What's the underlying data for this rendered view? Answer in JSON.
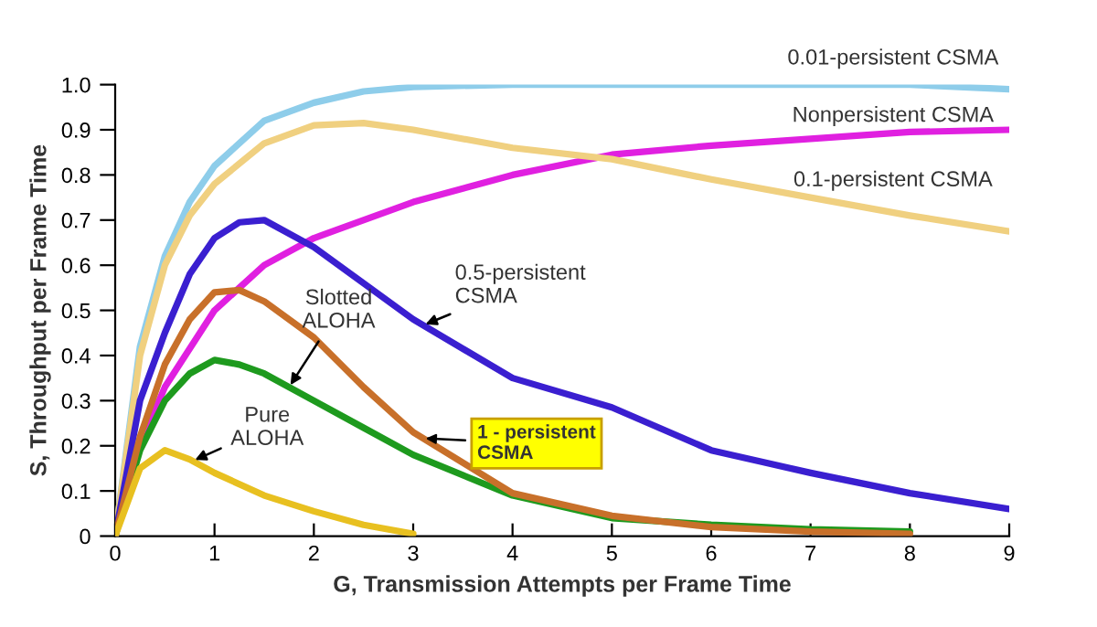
{
  "chart_data": {
    "type": "line",
    "xlabel": "G, Transmission Attempts per Frame Time",
    "ylabel": "S, Throughput per Frame Time",
    "xlim": [
      0,
      9
    ],
    "ylim": [
      0,
      1.0
    ],
    "xticks": [
      0,
      1,
      2,
      3,
      4,
      5,
      6,
      7,
      8,
      9
    ],
    "yticks": [
      0,
      {
        "value": 0.1,
        "label": "0.1"
      },
      {
        "value": 0.2,
        "label": "0.2"
      },
      {
        "value": 0.3,
        "label": "0.3"
      },
      {
        "value": 0.4,
        "label": "0.4"
      },
      {
        "value": 0.5,
        "label": "0.5"
      },
      {
        "value": 0.6,
        "label": "0.6"
      },
      {
        "value": 0.7,
        "label": "0.7"
      },
      {
        "value": 0.8,
        "label": "0.8"
      },
      {
        "value": 0.9,
        "label": "0.9"
      },
      {
        "value": 1.0,
        "label": "1.0"
      }
    ],
    "grid": false,
    "legend": false,
    "marker": "none",
    "line_style": "solid",
    "series": [
      {
        "name": "0.01-persistent CSMA",
        "color": "#8ecdea",
        "x": [
          0,
          0.25,
          0.5,
          0.75,
          1,
          1.5,
          2,
          2.5,
          3,
          4,
          5,
          6,
          7,
          8,
          9
        ],
        "values": [
          0,
          0.42,
          0.62,
          0.74,
          0.82,
          0.92,
          0.96,
          0.985,
          0.995,
          1.0,
          1.0,
          1.0,
          1.0,
          1.0,
          0.99
        ]
      },
      {
        "name": "Nonpersistent CSMA",
        "color": "#e020e0",
        "x": [
          0,
          0.25,
          0.5,
          1,
          1.5,
          2,
          3,
          4,
          5,
          6,
          7,
          8,
          9
        ],
        "values": [
          0,
          0.2,
          0.33,
          0.5,
          0.6,
          0.66,
          0.74,
          0.8,
          0.845,
          0.865,
          0.88,
          0.895,
          0.9
        ]
      },
      {
        "name": "0.1-persistent CSMA",
        "color": "#f0d080",
        "x": [
          0,
          0.25,
          0.5,
          0.75,
          1,
          1.5,
          2,
          2.5,
          3,
          4,
          5,
          6,
          7,
          8,
          9
        ],
        "values": [
          0,
          0.4,
          0.6,
          0.71,
          0.78,
          0.87,
          0.91,
          0.915,
          0.9,
          0.86,
          0.835,
          0.79,
          0.75,
          0.71,
          0.675
        ]
      },
      {
        "name": "0.5-persistent\nCSMA",
        "color": "#3a1fd0",
        "x": [
          0,
          0.25,
          0.5,
          0.75,
          1,
          1.25,
          1.5,
          2,
          2.5,
          3,
          4,
          5,
          6,
          7,
          8,
          9
        ],
        "values": [
          0,
          0.3,
          0.45,
          0.58,
          0.66,
          0.695,
          0.7,
          0.64,
          0.56,
          0.48,
          0.35,
          0.285,
          0.19,
          0.14,
          0.095,
          0.06
        ]
      },
      {
        "name": "Slotted\nALOHA",
        "color": "#1e9a1e",
        "x": [
          0,
          0.25,
          0.5,
          0.75,
          1,
          1.25,
          1.5,
          2,
          2.5,
          3,
          4,
          5,
          6,
          7,
          8
        ],
        "values": [
          0,
          0.19,
          0.3,
          0.36,
          0.39,
          0.38,
          0.36,
          0.3,
          0.24,
          0.18,
          0.09,
          0.04,
          0.025,
          0.015,
          0.01
        ]
      },
      {
        "name": "1 - persistent\nCSMA",
        "color": "#c8702a",
        "x": [
          0,
          0.25,
          0.5,
          0.75,
          1,
          1.25,
          1.5,
          2,
          2.5,
          3,
          4,
          5,
          6,
          7,
          8
        ],
        "values": [
          0,
          0.22,
          0.38,
          0.48,
          0.54,
          0.545,
          0.52,
          0.44,
          0.33,
          0.23,
          0.095,
          0.045,
          0.02,
          0.01,
          0.005
        ]
      },
      {
        "name": "Pure\nALOHA",
        "color": "#e8c020",
        "x": [
          0,
          0.25,
          0.5,
          0.75,
          1,
          1.5,
          2,
          2.5,
          3
        ],
        "values": [
          0,
          0.15,
          0.19,
          0.17,
          0.14,
          0.09,
          0.055,
          0.025,
          0.005
        ]
      }
    ]
  }
}
